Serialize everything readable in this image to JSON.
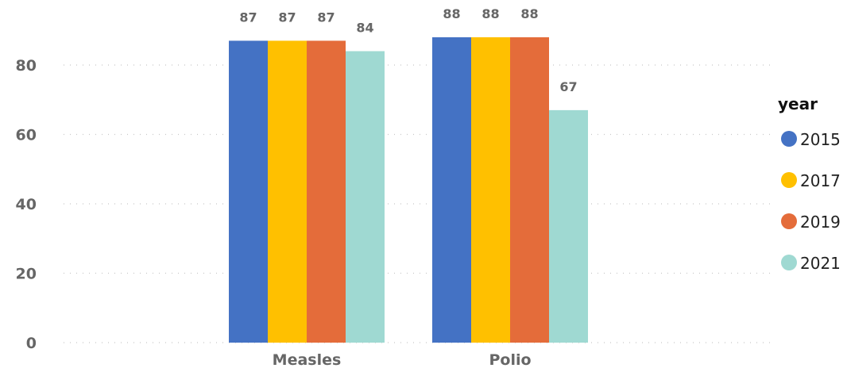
{
  "chart_data": {
    "type": "bar",
    "categories": [
      "Measles",
      "Polio"
    ],
    "series": [
      {
        "name": "2015",
        "color": "#4472C4",
        "values": [
          87,
          88
        ]
      },
      {
        "name": "2017",
        "color": "#FFC000",
        "values": [
          87,
          88
        ]
      },
      {
        "name": "2019",
        "color": "#E46C3A",
        "values": [
          87,
          88
        ]
      },
      {
        "name": "2021",
        "color": "#9FD9D2",
        "values": [
          84,
          67
        ]
      }
    ],
    "ylim": [
      0,
      100
    ],
    "yticks": [
      0,
      20,
      40,
      60,
      80
    ],
    "grid": true,
    "data_labels": true,
    "legend": {
      "title": "year",
      "position": "right"
    }
  }
}
